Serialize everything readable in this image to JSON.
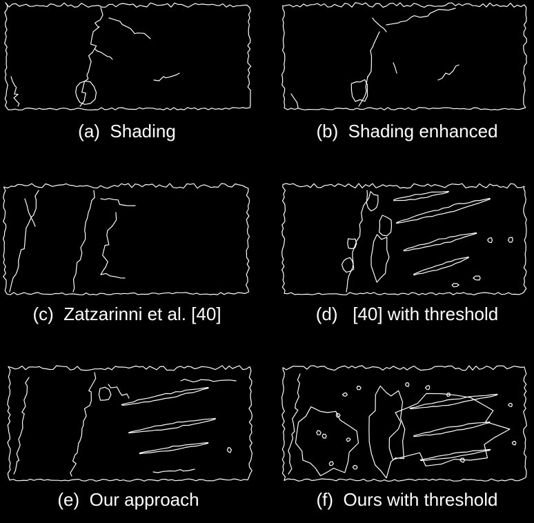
{
  "figure": {
    "panels": [
      {
        "id": "a",
        "caption": "(a)  Shading"
      },
      {
        "id": "b",
        "caption": "(b)  Shading enhanced"
      },
      {
        "id": "c",
        "caption": "(c)  Zatzarinni et al. [40]"
      },
      {
        "id": "d",
        "caption": "(d)   [40] with threshold"
      },
      {
        "id": "e",
        "caption": "(e)  Our approach"
      },
      {
        "id": "f",
        "caption": "(f)  Ours with threshold"
      }
    ]
  }
}
